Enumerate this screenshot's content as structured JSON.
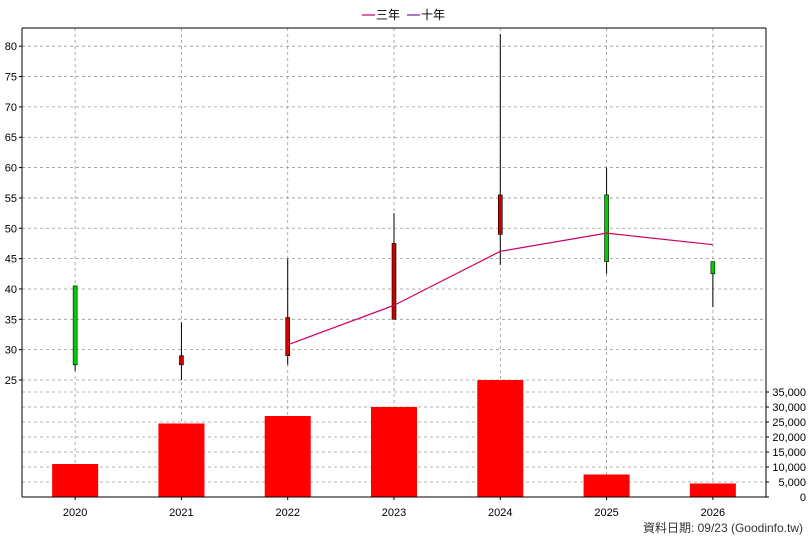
{
  "chart_data": {
    "type": "candlestick",
    "categories": [
      "2020",
      "2021",
      "2022",
      "2023",
      "2024",
      "2025",
      "2026"
    ],
    "legend": [
      {
        "name": "三年",
        "color": "#cc0066"
      },
      {
        "name": "十年",
        "color": "#7a1fa2"
      }
    ],
    "price_axis": {
      "ticks": [
        25,
        30,
        35,
        40,
        45,
        50,
        55,
        60,
        65,
        70,
        75,
        80
      ],
      "ylim": [
        25,
        83
      ]
    },
    "volume_axis": {
      "ticks": [
        "0",
        "5,000",
        "10,000",
        "15,000",
        "20,000",
        "25,000",
        "30,000",
        "35,000"
      ],
      "ylim": [
        0,
        39000
      ]
    },
    "candles": [
      {
        "open": 27.5,
        "high": 40.5,
        "low": 26.5,
        "close": 40.5,
        "color": "#00cc00"
      },
      {
        "open": 29.0,
        "high": 34.5,
        "low": 25.0,
        "close": 27.5,
        "color": "#cc0000"
      },
      {
        "open": 35.3,
        "high": 45.0,
        "low": 27.5,
        "close": 29.0,
        "color": "#cc0000"
      },
      {
        "open": 47.5,
        "high": 52.5,
        "low": 35.0,
        "close": 35.0,
        "color": "#cc0000"
      },
      {
        "open": 55.5,
        "high": 82.0,
        "low": 44.0,
        "close": 49.0,
        "color": "#cc0000"
      },
      {
        "open": 44.5,
        "high": 60.0,
        "low": 42.5,
        "close": 55.5,
        "color": "#00cc00"
      },
      {
        "open": 42.5,
        "high": 44.5,
        "low": 37.0,
        "close": 44.5,
        "color": "#00cc00"
      }
    ],
    "three_year_avg": [
      null,
      null,
      30.8,
      37.3,
      46.2,
      49.2,
      47.3
    ],
    "volume": [
      11000,
      24500,
      27000,
      30000,
      39000,
      7500,
      4500
    ],
    "volume_color": "#ff0000",
    "grid": true
  },
  "footer": "資料日期: 09/23  (Goodinfo.tw)"
}
